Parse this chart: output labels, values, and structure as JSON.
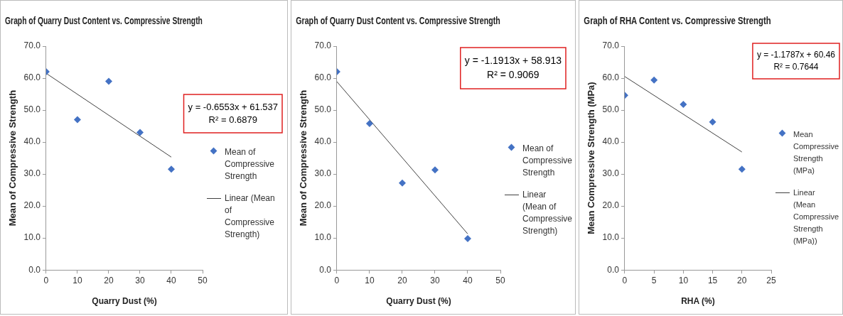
{
  "chart_data": [
    {
      "type": "scatter",
      "title": "Graph of Quarry Dust Content vs. Compressive Strength",
      "xlabel": "Quarry Dust (%)",
      "ylabel": "Mean of Compressive Strength",
      "xlim": [
        0,
        50
      ],
      "xticks": [
        0,
        10,
        20,
        30,
        40,
        50
      ],
      "ylim": [
        0,
        70
      ],
      "yticks": [
        {
          "value": 0,
          "label": "0.0"
        },
        {
          "value": 10,
          "label": "10.0"
        },
        {
          "value": 20,
          "label": "20.0"
        },
        {
          "value": 30,
          "label": "30.0"
        },
        {
          "value": 40,
          "label": "40.0"
        },
        {
          "value": 50,
          "label": "50.0"
        },
        {
          "value": 60,
          "label": "60.0"
        },
        {
          "value": 70,
          "label": "70.0"
        }
      ],
      "grid": false,
      "legend": "right",
      "series": [
        {
          "name": "Mean of Compressive Strength",
          "type": "scatter",
          "marker": "diamond",
          "color": "#4472c4",
          "x": [
            0,
            10,
            20,
            30,
            40
          ],
          "values": [
            62,
            47,
            59,
            43,
            31.5
          ]
        },
        {
          "name": "Linear (Mean of Compressive Strength)",
          "type": "line",
          "marker": "none",
          "color": "#404040",
          "x": [
            0,
            40
          ],
          "values": [
            61.5,
            35.3
          ]
        }
      ],
      "annotations": [
        "y = -0.6553x + 61.537",
        "R² = 0.6879"
      ]
    },
    {
      "type": "scatter",
      "title": "Graph of Quarry Dust Content vs. Compressive Strength",
      "xlabel": "Quarry Dust (%)",
      "ylabel": "Mean of Compressive Strength",
      "xlim": [
        0,
        50
      ],
      "xticks": [
        0,
        10,
        20,
        30,
        40,
        50
      ],
      "ylim": [
        0,
        70
      ],
      "yticks": [
        {
          "value": 0,
          "label": "0.0"
        },
        {
          "value": 10,
          "label": "10.0"
        },
        {
          "value": 20,
          "label": "20.0"
        },
        {
          "value": 30,
          "label": "30.0"
        },
        {
          "value": 40,
          "label": "40.0"
        },
        {
          "value": 50,
          "label": "50.0"
        },
        {
          "value": 60,
          "label": "60.0"
        },
        {
          "value": 70,
          "label": "70.0"
        }
      ],
      "grid": false,
      "legend": "right",
      "series": [
        {
          "name": "Mean of Compressive Strength",
          "type": "scatter",
          "marker": "diamond",
          "color": "#4472c4",
          "x": [
            0,
            10,
            20,
            30,
            40
          ],
          "values": [
            62,
            45.8,
            27.2,
            31.3,
            9.8
          ]
        },
        {
          "name": "Linear (Mean of Compressive Strength)",
          "type": "line",
          "marker": "none",
          "color": "#404040",
          "x": [
            0,
            40
          ],
          "values": [
            58.9,
            11.3
          ]
        }
      ],
      "annotations": [
        "y = -1.1913x + 58.913",
        "R² = 0.9069"
      ]
    },
    {
      "type": "scatter",
      "title": "Graph of RHA Content vs. Compressive Strength",
      "xlabel": "RHA (%)",
      "ylabel": "Mean Compressive Strength (MPa)",
      "xlim": [
        0,
        25
      ],
      "xticks": [
        0,
        5,
        10,
        15,
        20,
        25
      ],
      "ylim": [
        0,
        70
      ],
      "yticks": [
        {
          "value": 0,
          "label": "0.0"
        },
        {
          "value": 10,
          "label": "10.0"
        },
        {
          "value": 20,
          "label": "20.0"
        },
        {
          "value": 30,
          "label": "30.0"
        },
        {
          "value": 40,
          "label": "40.0"
        },
        {
          "value": 50,
          "label": "50.0"
        },
        {
          "value": 60,
          "label": "60.0"
        },
        {
          "value": 70,
          "label": "70.0"
        }
      ],
      "grid": false,
      "legend": "right",
      "series": [
        {
          "name": "Mean Compressive Strength (MPa)",
          "type": "scatter",
          "marker": "diamond",
          "color": "#4472c4",
          "x": [
            0,
            5,
            10,
            15,
            20
          ],
          "values": [
            54.6,
            59.4,
            51.8,
            46.3,
            31.5
          ]
        },
        {
          "name": "Linear (Mean Compressive Strength (MPa))",
          "type": "line",
          "marker": "none",
          "color": "#404040",
          "x": [
            0,
            20
          ],
          "values": [
            60.5,
            36.9
          ]
        }
      ],
      "annotations": [
        "y = -1.1787x + 60.46",
        "R² = 0.7644"
      ]
    }
  ]
}
